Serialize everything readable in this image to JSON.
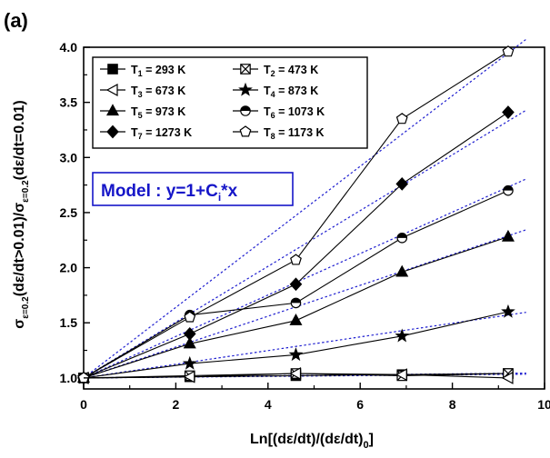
{
  "chart_data": {
    "type": "line",
    "panel_label": "(a)",
    "xlabel": "Ln[(dε/dt)/(dε/dt)0]",
    "ylabel": "σε=0.2(dε/dt>0.01)/σε=0.2(dε/dt=0.01)",
    "xlim": [
      0,
      10
    ],
    "ylim": [
      0.9,
      4.0
    ],
    "xticks": [
      "0",
      "2",
      "4",
      "6",
      "8",
      "10"
    ],
    "yticks": [
      "1.0",
      "1.5",
      "2.0",
      "2.5",
      "3.0",
      "3.5",
      "4.0"
    ],
    "grid": false,
    "legend_position": "top-left",
    "x": [
      0,
      2.303,
      4.605,
      6.908,
      9.21
    ],
    "series": [
      {
        "name": "T1 = 293 K",
        "marker": "square-filled",
        "values": [
          1.0,
          1.01,
          1.02,
          1.03,
          1.04
        ],
        "fit_slope": 0.0045
      },
      {
        "name": "T2 = 473 K",
        "marker": "x-square",
        "values": [
          1.0,
          1.02,
          1.04,
          1.02,
          1.04
        ],
        "fit_slope": 0.0045
      },
      {
        "name": "T3 = 673 K",
        "marker": "triangle-left-open",
        "values": [
          1.0,
          1.01,
          1.04,
          1.03,
          1.0
        ],
        "fit_slope": 0.0035
      },
      {
        "name": "T4 = 873 K",
        "marker": "star-filled",
        "values": [
          1.0,
          1.13,
          1.21,
          1.38,
          1.6
        ],
        "fit_slope": 0.062
      },
      {
        "name": "T5 = 973 K",
        "marker": "triangle-up-filled",
        "values": [
          1.0,
          1.31,
          1.52,
          1.96,
          2.28
        ],
        "fit_slope": 0.14
      },
      {
        "name": "T6 = 1073 K",
        "marker": "circle-half",
        "values": [
          1.0,
          1.57,
          1.68,
          2.27,
          2.7
        ],
        "fit_slope": 0.188
      },
      {
        "name": "T7 = 1273 K",
        "marker": "diamond-filled",
        "values": [
          1.0,
          1.4,
          1.85,
          2.76,
          3.41
        ],
        "fit_slope": 0.253
      },
      {
        "name": "T8 = 1173 K",
        "marker": "pentagon-open",
        "values": [
          1.0,
          1.55,
          2.07,
          3.35,
          3.96
        ],
        "fit_slope": 0.32
      }
    ],
    "annotation": {
      "text": "Model : y=1+Ci*x",
      "box_color": "#1515c8"
    },
    "colors": {
      "data_line": "#000000",
      "fit_line": "#1f1fd0"
    }
  }
}
